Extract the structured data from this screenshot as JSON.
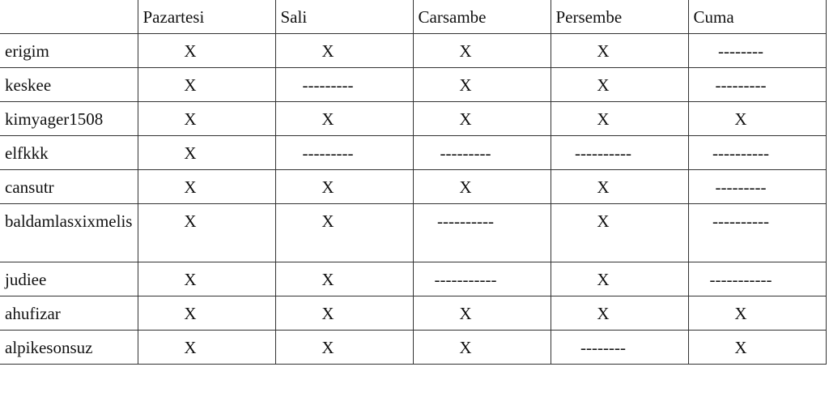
{
  "columns": [
    "",
    "Pazartesi",
    "Sali",
    "Carsambe",
    "Persembe",
    "Cuma"
  ],
  "rows": [
    {
      "name": "erigim",
      "cells": [
        "X",
        "X",
        "X",
        "X",
        "--------"
      ]
    },
    {
      "name": "keskee",
      "cells": [
        "X",
        "---------",
        "X",
        "X",
        "---------"
      ]
    },
    {
      "name": "kimyager1508",
      "cells": [
        "X",
        "X",
        "X",
        "X",
        "X"
      ]
    },
    {
      "name": "elfkkk",
      "cells": [
        "X",
        "---------",
        "---------",
        "----------",
        "----------"
      ]
    },
    {
      "name": "cansutr",
      "cells": [
        "X",
        "X",
        "X",
        "X",
        "---------"
      ]
    },
    {
      "name": "baldamlasxixmelis",
      "cells": [
        "X",
        "X",
        "----------",
        "X",
        "----------"
      ]
    },
    {
      "name": "judiee",
      "cells": [
        "X",
        "X",
        "-----------",
        "X",
        "-----------"
      ]
    },
    {
      "name": "ahufizar",
      "cells": [
        "X",
        "X",
        "X",
        "X",
        "X"
      ]
    },
    {
      "name": "alpikesonsuz",
      "cells": [
        "X",
        "X",
        "X",
        "--------",
        "X"
      ]
    }
  ]
}
